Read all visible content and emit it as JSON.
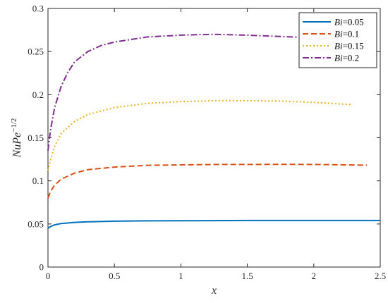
{
  "chart_data": {
    "type": "line",
    "xlabel": "x",
    "ylabel_base": "NuPe",
    "ylabel_exp": "−1/2",
    "xlim": [
      0,
      2.5
    ],
    "ylim": [
      0,
      0.3
    ],
    "xticks": [
      0,
      0.5,
      1,
      1.5,
      2,
      2.5
    ],
    "xtick_labels": [
      "0",
      "0.5",
      "1",
      "1.5",
      "2",
      "2.5"
    ],
    "yticks": [
      0,
      0.05,
      0.1,
      0.15,
      0.2,
      0.25,
      0.3
    ],
    "ytick_labels": [
      "0",
      "0.05",
      "0.1",
      "0.15",
      "0.2",
      "0.25",
      "0.3"
    ],
    "legend_position": "top-right",
    "grid": false,
    "series": [
      {
        "name_var": "Bi",
        "name_val": "=0.05",
        "color": "#0072BD",
        "style": "solid",
        "x": [
          0,
          0.02,
          0.05,
          0.1,
          0.2,
          0.3,
          0.5,
          0.75,
          1,
          1.25,
          1.5,
          1.75,
          2,
          2.25,
          2.5
        ],
        "y": [
          0.045,
          0.047,
          0.049,
          0.0505,
          0.0518,
          0.0525,
          0.0532,
          0.0536,
          0.0538,
          0.0539,
          0.054,
          0.054,
          0.054,
          0.054,
          0.054
        ]
      },
      {
        "name_var": "Bi",
        "name_val": "=0.1",
        "color": "#D95319",
        "style": "dashed",
        "x": [
          0,
          0.02,
          0.05,
          0.1,
          0.2,
          0.3,
          0.5,
          0.75,
          1,
          1.25,
          1.5,
          1.75,
          2,
          2.25,
          2.4
        ],
        "y": [
          0.08,
          0.088,
          0.095,
          0.102,
          0.109,
          0.113,
          0.116,
          0.118,
          0.1185,
          0.119,
          0.119,
          0.1192,
          0.119,
          0.1185,
          0.1182
        ]
      },
      {
        "name_var": "Bi",
        "name_val": "=0.15",
        "color": "#EDB120",
        "style": "dotted",
        "x": [
          0,
          0.02,
          0.05,
          0.1,
          0.2,
          0.3,
          0.5,
          0.75,
          1,
          1.25,
          1.5,
          1.75,
          2,
          2.28
        ],
        "y": [
          0.112,
          0.125,
          0.14,
          0.155,
          0.169,
          0.177,
          0.185,
          0.19,
          0.192,
          0.193,
          0.193,
          0.1925,
          0.191,
          0.1885
        ]
      },
      {
        "name_var": "Bi",
        "name_val": "=0.2",
        "color": "#7E2F8E",
        "style": "dashdot",
        "x": [
          0,
          0.02,
          0.05,
          0.1,
          0.15,
          0.2,
          0.3,
          0.4,
          0.5,
          0.75,
          1,
          1.25,
          1.5,
          1.75,
          2,
          2.2
        ],
        "y": [
          0.135,
          0.16,
          0.185,
          0.21,
          0.226,
          0.238,
          0.25,
          0.257,
          0.261,
          0.267,
          0.269,
          0.27,
          0.269,
          0.2675,
          0.266,
          0.264
        ]
      }
    ]
  }
}
